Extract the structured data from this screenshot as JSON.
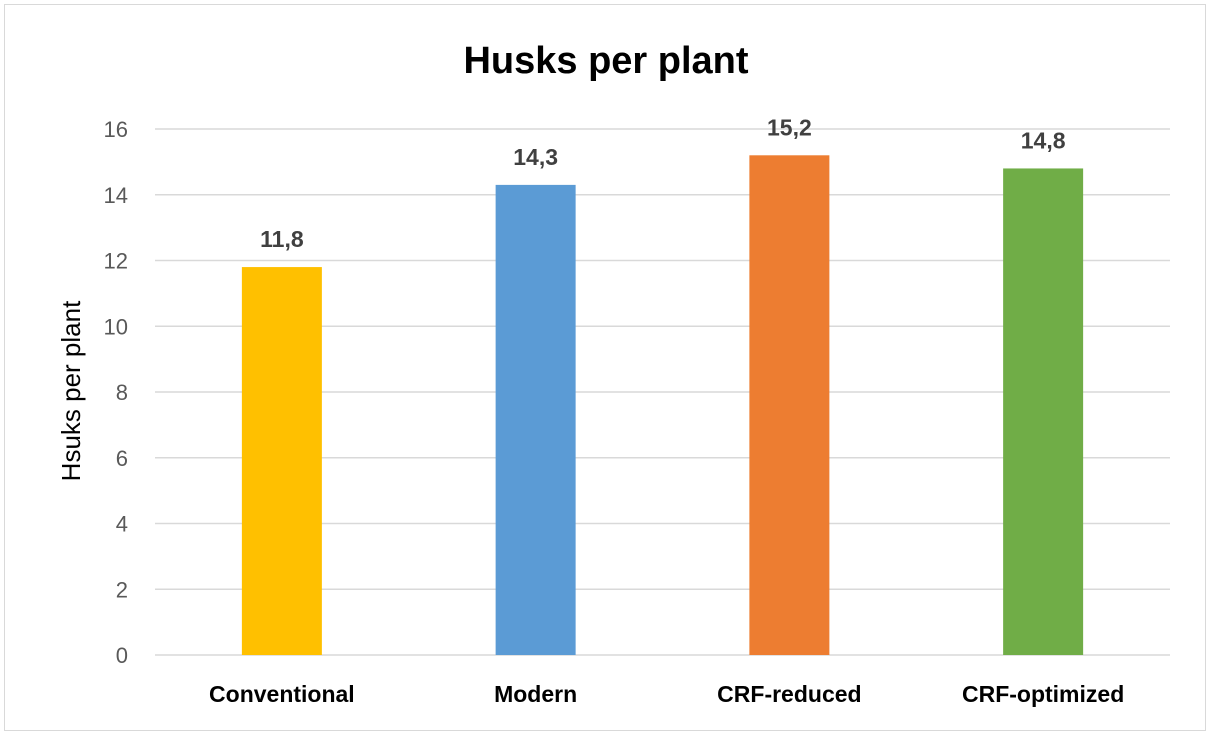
{
  "chart_data": {
    "type": "bar",
    "title": "Husks per plant",
    "xlabel": "",
    "ylabel": "Hsuks per plant",
    "categories": [
      "Conventional",
      "Modern",
      "CRF-reduced",
      "CRF-optimized"
    ],
    "values": [
      11.8,
      14.3,
      15.2,
      14.8
    ],
    "data_labels": [
      "11,8",
      "14,3",
      "15,2",
      "14,8"
    ],
    "colors": [
      "#FFC000",
      "#5B9BD5",
      "#ED7D31",
      "#70AD47"
    ],
    "ylim": [
      0,
      16
    ],
    "yticks": [
      0,
      2,
      4,
      6,
      8,
      10,
      12,
      14,
      16
    ],
    "grid": true,
    "legend": "none"
  }
}
